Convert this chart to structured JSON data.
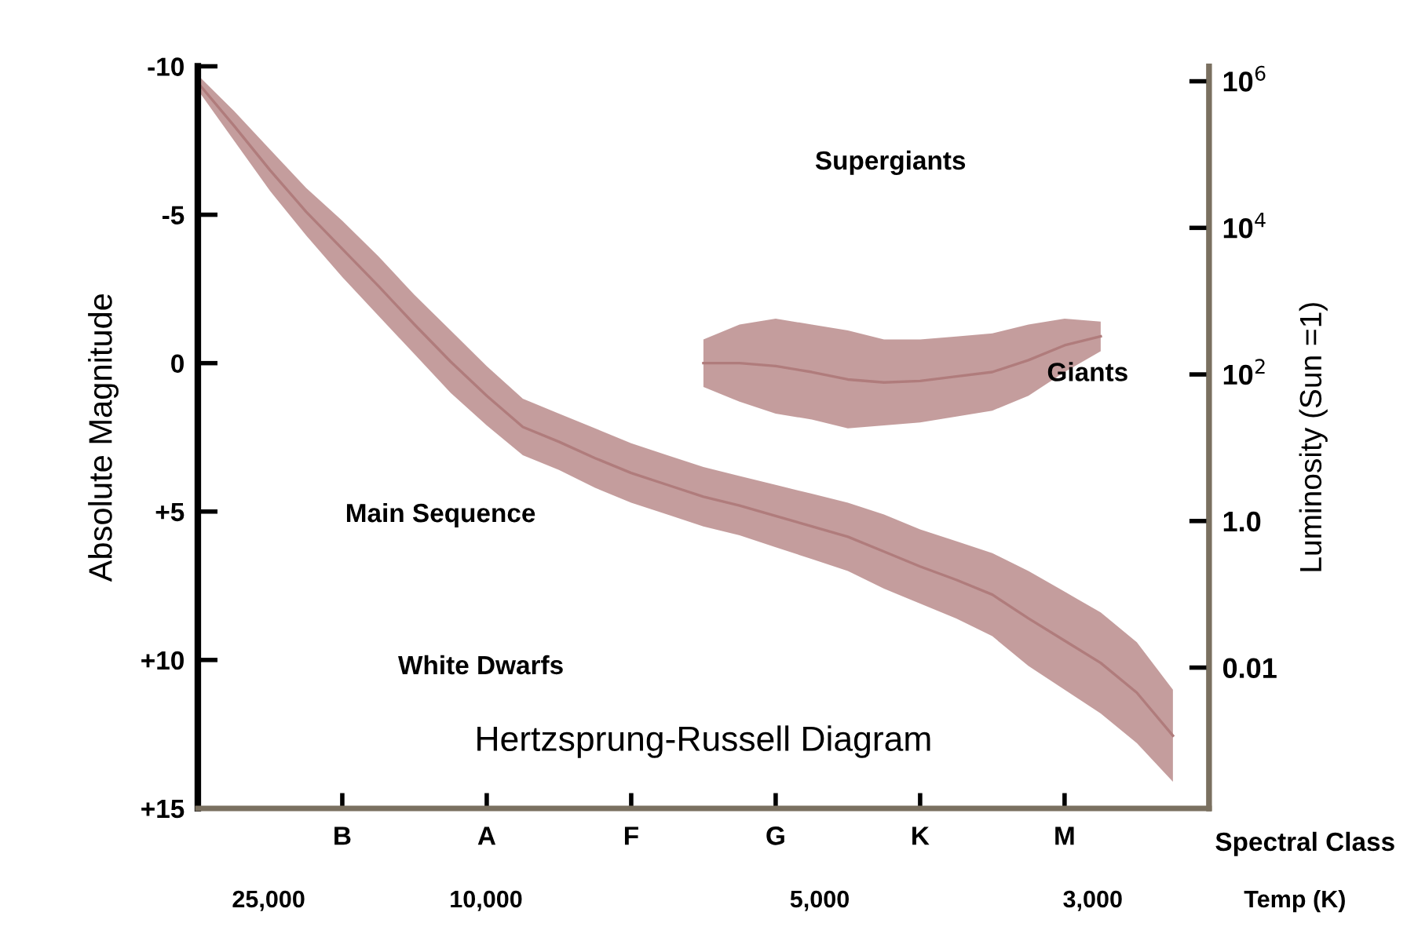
{
  "chart_data": {
    "type": "line",
    "title": "Hertzsprung-Russell Diagram",
    "xlabel": "Spectral Class",
    "ylabel": "Absolute Magnitude",
    "y2label": "Luminosity (Sun =1)",
    "categories": [
      null,
      null,
      null,
      null,
      "B",
      null,
      null,
      null,
      "A",
      null,
      null,
      null,
      "F",
      null,
      null,
      null,
      "G",
      null,
      null,
      null,
      "K",
      null,
      null,
      null,
      "M",
      null,
      null,
      null,
      null
    ],
    "ylim": [
      15,
      -10
    ],
    "yticks": [
      -10,
      -5,
      0,
      {
        "value": 5,
        "label": "+5"
      },
      {
        "value": 10,
        "label": "+10"
      },
      {
        "value": 15,
        "label": "+15"
      }
    ],
    "y2lim": [
      0.00012,
      1600000
    ],
    "log": "y2",
    "y2ticks": [
      {
        "value": 1000000,
        "label": "10$^{6}$"
      },
      {
        "value": 10000,
        "label": "10$^{4}$"
      },
      {
        "value": 100,
        "label": "10$^{2}$"
      },
      {
        "value": 1,
        "label": "1.0"
      },
      0.01
    ],
    "grid": false,
    "legend": false,
    "marker": "none",
    "line_style": "solid",
    "series": [
      {
        "color": "#b07c7c",
        "upper": [
          -9.7,
          -8.5,
          -7.2,
          -5.9,
          -4.8,
          -3.6,
          -2.3,
          -1.1,
          0.1,
          1.2,
          1.7,
          2.2,
          2.7,
          3.1,
          3.5,
          3.8,
          4.1,
          4.4,
          4.7,
          5.1,
          5.6,
          6.0,
          6.4,
          7.0,
          7.7,
          8.4,
          9.4,
          11.0,
          null
        ],
        "lower": [
          -9.2,
          -7.5,
          -5.8,
          -4.3,
          -2.9,
          -1.6,
          -0.3,
          1.0,
          2.1,
          3.1,
          3.6,
          4.2,
          4.7,
          5.1,
          5.5,
          5.8,
          6.2,
          6.6,
          7.0,
          7.6,
          8.1,
          8.6,
          9.2,
          10.2,
          11.0,
          11.8,
          12.8,
          14.1,
          null
        ],
        "values": [
          -9.45,
          -8.0,
          -6.5,
          -5.1,
          -3.85,
          -2.6,
          -1.3,
          -0.05,
          1.1,
          2.15,
          2.65,
          3.2,
          3.7,
          4.1,
          4.5,
          4.8,
          5.15,
          5.5,
          5.85,
          6.35,
          6.85,
          7.3,
          7.8,
          8.6,
          9.35,
          10.1,
          11.1,
          12.55,
          null
        ]
      },
      {
        "color": "#b07c7c",
        "upper": [
          null,
          null,
          null,
          null,
          null,
          null,
          null,
          null,
          null,
          null,
          null,
          null,
          null,
          null,
          -0.8,
          -1.3,
          -1.5,
          -1.3,
          -1.1,
          -0.8,
          -0.8,
          -0.9,
          -1.0,
          -1.3,
          -1.5,
          -1.4,
          null,
          null,
          null
        ],
        "lower": [
          null,
          null,
          null,
          null,
          null,
          null,
          null,
          null,
          null,
          null,
          null,
          null,
          null,
          null,
          0.8,
          1.3,
          1.7,
          1.9,
          2.2,
          2.1,
          2.0,
          1.8,
          1.6,
          1.1,
          0.3,
          -0.4,
          null,
          null,
          null
        ],
        "values": [
          null,
          null,
          null,
          null,
          null,
          null,
          null,
          null,
          null,
          null,
          null,
          null,
          null,
          null,
          0.0,
          0.0,
          0.1,
          0.3,
          0.55,
          0.65,
          0.6,
          0.45,
          0.3,
          -0.1,
          -0.6,
          -0.9,
          null,
          null,
          null
        ]
      }
    ],
    "annotations": [
      "Supergiants",
      "Giants",
      "Main Sequence",
      "White Dwarfs",
      "25,000",
      "10,000",
      "5,000",
      "3,000",
      "Temp (K)"
    ]
  }
}
